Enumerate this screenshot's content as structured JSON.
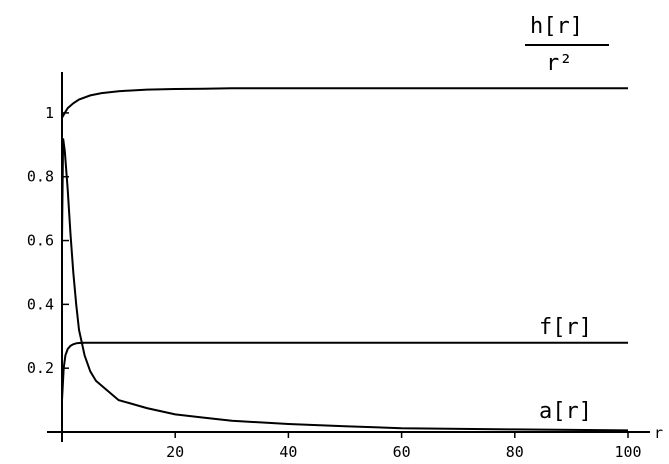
{
  "chart_data": {
    "type": "line",
    "xlabel": "r",
    "ylabel": "",
    "xlim": [
      0,
      100
    ],
    "ylim": [
      0,
      1.1
    ],
    "x_ticks": [
      {
        "value": 20,
        "label": "20"
      },
      {
        "value": 40,
        "label": "40"
      },
      {
        "value": 60,
        "label": "60"
      },
      {
        "value": 80,
        "label": "80"
      },
      {
        "value": 100,
        "label": "100"
      }
    ],
    "y_ticks": [
      {
        "value": 0.2,
        "label": "0.2"
      },
      {
        "value": 0.4,
        "label": "0.4"
      },
      {
        "value": 0.6,
        "label": "0.6"
      },
      {
        "value": 0.8,
        "label": "0.8"
      },
      {
        "value": 1,
        "label": "1"
      }
    ],
    "grid": false,
    "legend": "none",
    "series": [
      {
        "name": "h[r]/r²",
        "label_numerator": "h[r]",
        "label_denominator": "r²",
        "x": [
          0,
          0.5,
          1,
          2,
          3,
          5,
          7,
          10,
          15,
          20,
          25,
          30,
          40,
          60,
          80,
          100
        ],
        "y": [
          0.985,
          1.0,
          1.015,
          1.03,
          1.042,
          1.055,
          1.062,
          1.068,
          1.073,
          1.075,
          1.076,
          1.077,
          1.077,
          1.077,
          1.077,
          1.077
        ]
      },
      {
        "name": "f[r]",
        "label": "f[r]",
        "x": [
          0,
          0.3,
          0.6,
          1,
          1.5,
          2,
          2.5,
          3,
          4,
          6,
          10,
          20,
          40,
          60,
          80,
          100
        ],
        "y": [
          0.1,
          0.2,
          0.24,
          0.26,
          0.27,
          0.275,
          0.278,
          0.279,
          0.28,
          0.28,
          0.28,
          0.28,
          0.28,
          0.28,
          0.28,
          0.28
        ]
      },
      {
        "name": "a[r]",
        "label": "a[r]",
        "x": [
          0,
          0.2,
          0.5,
          1,
          1.5,
          2,
          2.5,
          3,
          4,
          5,
          6,
          8,
          10,
          15,
          20,
          25,
          30,
          40,
          50,
          60,
          80,
          100
        ],
        "y": [
          0.6,
          0.92,
          0.88,
          0.76,
          0.62,
          0.5,
          0.4,
          0.32,
          0.24,
          0.19,
          0.16,
          0.13,
          0.1,
          0.075,
          0.055,
          0.045,
          0.035,
          0.025,
          0.018,
          0.012,
          0.008,
          0.005
        ]
      }
    ]
  }
}
